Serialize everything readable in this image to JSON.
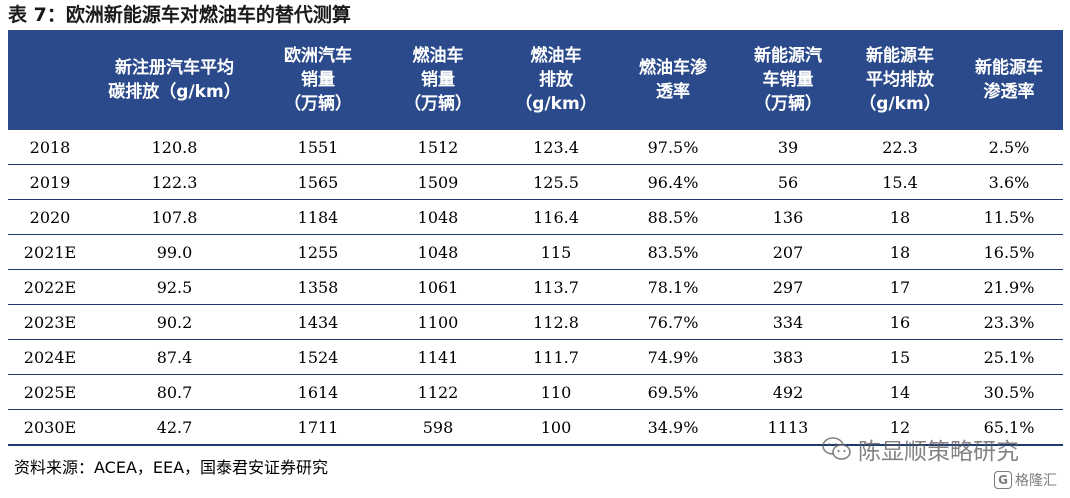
{
  "title": "表 7：欧洲新能源车对燃油车的替代测算",
  "table": {
    "headers": [
      "",
      "新注册汽车平均\n碳排放（g/km）",
      "欧洲汽车\n销量\n（万辆）",
      "燃油车\n销量\n（万辆）",
      "燃油车\n排放\n（g/km）",
      "燃油车渗\n透率",
      "新能源汽\n车销量\n（万辆）",
      "新能源车\n平均排放\n（g/km）",
      "新能源车\n渗透率"
    ],
    "rows": [
      [
        "2018",
        "120.8",
        "1551",
        "1512",
        "123.4",
        "97.5%",
        "39",
        "22.3",
        "2.5%"
      ],
      [
        "2019",
        "122.3",
        "1565",
        "1509",
        "125.5",
        "96.4%",
        "56",
        "15.4",
        "3.6%"
      ],
      [
        "2020",
        "107.8",
        "1184",
        "1048",
        "116.4",
        "88.5%",
        "136",
        "18",
        "11.5%"
      ],
      [
        "2021E",
        "99.0",
        "1255",
        "1048",
        "115",
        "83.5%",
        "207",
        "18",
        "16.5%"
      ],
      [
        "2022E",
        "92.5",
        "1358",
        "1061",
        "113.7",
        "78.1%",
        "297",
        "17",
        "21.9%"
      ],
      [
        "2023E",
        "90.2",
        "1434",
        "1100",
        "112.8",
        "76.7%",
        "334",
        "16",
        "23.3%"
      ],
      [
        "2024E",
        "87.4",
        "1524",
        "1141",
        "111.7",
        "74.9%",
        "383",
        "15",
        "25.1%"
      ],
      [
        "2025E",
        "80.7",
        "1614",
        "1122",
        "110",
        "69.5%",
        "492",
        "14",
        "30.5%"
      ],
      [
        "2030E",
        "42.7",
        "1711",
        "598",
        "100",
        "34.9%",
        "1113",
        "12",
        "65.1%"
      ]
    ]
  },
  "source": "资料来源：ACEA，EEA，国泰君安证券研究",
  "watermark": {
    "text": "陈显顺策略研究",
    "icon": "wechat-icon",
    "badge_text": "格隆汇",
    "badge_icon": "gelonghui-logo-icon"
  },
  "colors": {
    "header_bg": "#2b4a8b",
    "header_text": "#ffffff",
    "row_border": "#1f3a73"
  }
}
